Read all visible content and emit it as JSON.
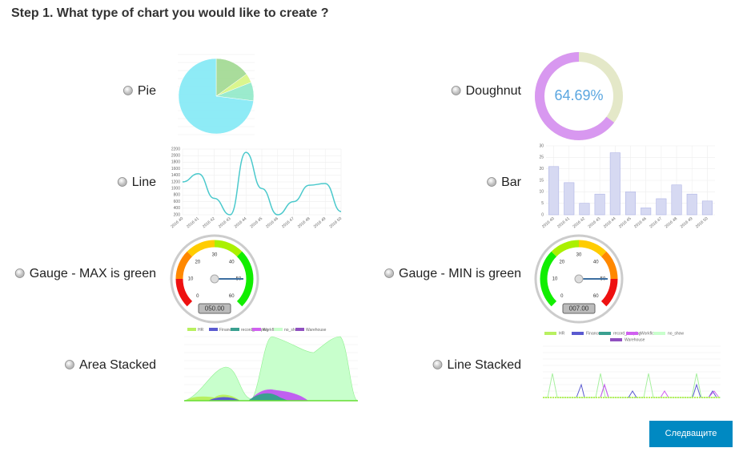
{
  "title": "Step 1. What type of chart you would like to create ?",
  "options": [
    {
      "label": "Pie"
    },
    {
      "label": "Doughnut"
    },
    {
      "label": "Line"
    },
    {
      "label": "Bar"
    },
    {
      "label": "Gauge - MAX is green"
    },
    {
      "label": "Gauge - MIN is green"
    },
    {
      "label": "Area Stacked"
    },
    {
      "label": "Line Stacked"
    }
  ],
  "pie": {
    "values": [
      15,
      4,
      8,
      73
    ],
    "colors": [
      "#9ad68a",
      "#d4f57a",
      "#8ae8c4",
      "#7ae8f4"
    ]
  },
  "doughnut": {
    "value": 64.69,
    "label": "64.69%",
    "color": "#d898f0",
    "rest_color": "#e4e8c8"
  },
  "line": {
    "categories": [
      "2016 40",
      "2016 41",
      "2016 42",
      "2016 43",
      "2016 44",
      "2016 45",
      "2016 46",
      "2016 47",
      "2016 48",
      "2016 49",
      "2016 50"
    ],
    "values": [
      1200,
      1450,
      700,
      200,
      2100,
      1000,
      200,
      600,
      1100,
      1150,
      300
    ],
    "ylim": [
      200,
      2200
    ],
    "yticks": [
      200,
      400,
      600,
      800,
      1000,
      1200,
      1400,
      1600,
      1800,
      2000,
      2200
    ],
    "color": "#4bc9cc"
  },
  "bar": {
    "categories": [
      "2016 40",
      "2016 41",
      "2016 42",
      "2016 43",
      "2016 44",
      "2016 45",
      "2016 46",
      "2016 47",
      "2016 48",
      "2016 49",
      "2016 50"
    ],
    "values": [
      21,
      14,
      5,
      9,
      27,
      10,
      3,
      7,
      13,
      9,
      6
    ],
    "ylim": [
      0,
      30
    ],
    "yticks": [
      0,
      5,
      10,
      15,
      20,
      25,
      30
    ],
    "color": "#d6d9f2"
  },
  "gauges": [
    {
      "scale": [
        0,
        10,
        20,
        30,
        40,
        50,
        60
      ],
      "readout": "050.00"
    },
    {
      "scale": [
        0,
        10,
        20,
        30,
        40,
        50,
        60
      ],
      "readout": "007.00"
    }
  ],
  "area_legend": [
    "HR",
    "Finance",
    "record_keeping",
    "Workflow",
    "no_show",
    "Warehouse"
  ],
  "button": "Следващите"
}
